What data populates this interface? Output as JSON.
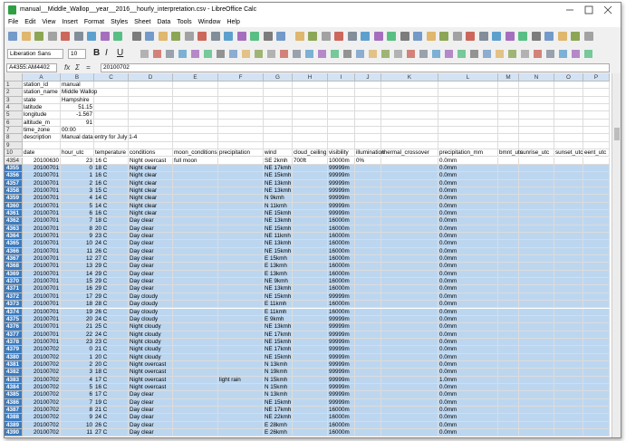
{
  "window": {
    "title": "manual__Middle_Wallop__year__2016__hourly_interpretation.csv - LibreOffice Calc",
    "menu": [
      "File",
      "Edit",
      "View",
      "Insert",
      "Format",
      "Styles",
      "Sheet",
      "Data",
      "Tools",
      "Window",
      "Help"
    ]
  },
  "toolbar": {
    "font_name": "Liberation Sans",
    "font_size": "10",
    "text_style": [
      "B",
      "I",
      "U"
    ]
  },
  "formula_bar": {
    "name_box": "A4355:AM4402",
    "function_icons": [
      "fx",
      "Σ",
      "="
    ],
    "formula": "20100702"
  },
  "sheet": {
    "columns": [
      "A",
      "B",
      "C",
      "D",
      "E",
      "F",
      "G",
      "H",
      "I",
      "J",
      "K",
      "L",
      "M",
      "N",
      "O",
      "P"
    ],
    "rows": [
      [
        1,
        "station_id",
        "manual"
      ],
      [
        2,
        "station_name",
        "Middle Wallop"
      ],
      [
        3,
        "state",
        "Hampshire"
      ],
      [
        4,
        "latitude",
        51.15
      ],
      [
        5,
        "longitude",
        -1.567
      ],
      [
        6,
        "altitude_m",
        91
      ],
      [
        7,
        "time_zone",
        "00:00"
      ],
      [
        8,
        "description",
        "Manual data entry for July 1-4"
      ],
      [
        9
      ],
      [
        10,
        "date",
        "hour_utc",
        "temperature",
        "conditions",
        "moon_conditions",
        "precipitation",
        "wind",
        "cloud_ceiling",
        "visibility",
        "illumination",
        "thermal_crossover",
        "precipitation_mm",
        "bmnt_utc",
        "sunrise_utc",
        "sunset_utc",
        "eent_utc"
      ],
      [
        4354,
        20100630,
        23,
        "16 C",
        "Night overcast",
        "full moon",
        null,
        "SE 2kmh",
        "700ft",
        "10000m",
        "0%",
        null,
        "0.0mm"
      ],
      [
        4355,
        20100701,
        0,
        "18 C",
        "Night clear",
        null,
        null,
        "NE 17kmh",
        null,
        "99999m",
        null,
        null,
        "0.0mm"
      ],
      [
        4356,
        20100701,
        1,
        "16 C",
        "Night clear",
        null,
        null,
        "NE 15kmh",
        null,
        "99999m",
        null,
        null,
        "0.0mm"
      ],
      [
        4357,
        20100701,
        2,
        "16 C",
        "Night clear",
        null,
        null,
        "NE 13kmh",
        null,
        "99999m",
        null,
        null,
        "0.0mm"
      ],
      [
        4358,
        20100701,
        3,
        "15 C",
        "Night clear",
        null,
        null,
        "NE 13kmh",
        null,
        "99999m",
        null,
        null,
        "0.0mm"
      ],
      [
        4359,
        20100701,
        4,
        "14 C",
        "Night clear",
        null,
        null,
        "N 9kmh",
        null,
        "99999m",
        null,
        null,
        "0.0mm"
      ],
      [
        4360,
        20100701,
        5,
        "14 C",
        "Night clear",
        null,
        null,
        "N 11kmh",
        null,
        "99999m",
        null,
        null,
        "0.0mm"
      ],
      [
        4361,
        20100701,
        6,
        "16 C",
        "Night clear",
        null,
        null,
        "NE 15kmh",
        null,
        "99999m",
        null,
        null,
        "0.0mm"
      ],
      [
        4362,
        20100701,
        7,
        "18 C",
        "Day clear",
        null,
        null,
        "NE 13kmh",
        null,
        "16000m",
        null,
        null,
        "0.0mm"
      ],
      [
        4363,
        20100701,
        8,
        "20 C",
        "Day clear",
        null,
        null,
        "NE 15kmh",
        null,
        "16000m",
        null,
        null,
        "0.0mm"
      ],
      [
        4364,
        20100701,
        9,
        "23 C",
        "Day clear",
        null,
        null,
        "NE 11kmh",
        null,
        "16000m",
        null,
        null,
        "0.0mm"
      ],
      [
        4365,
        20100701,
        10,
        "24 C",
        "Day clear",
        null,
        null,
        "NE 13kmh",
        null,
        "16000m",
        null,
        null,
        "0.0mm"
      ],
      [
        4366,
        20100701,
        11,
        "26 C",
        "Day clear",
        null,
        null,
        "NE 15kmh",
        null,
        "16000m",
        null,
        null,
        "0.0mm"
      ],
      [
        4367,
        20100701,
        12,
        "27 C",
        "Day clear",
        null,
        null,
        "E 15kmh",
        null,
        "16000m",
        null,
        null,
        "0.0mm"
      ],
      [
        4368,
        20100701,
        13,
        "29 C",
        "Day clear",
        null,
        null,
        "E 13kmh",
        null,
        "16000m",
        null,
        null,
        "0.0mm"
      ],
      [
        4369,
        20100701,
        14,
        "29 C",
        "Day clear",
        null,
        null,
        "E 13kmh",
        null,
        "16000m",
        null,
        null,
        "0.0mm"
      ],
      [
        4370,
        20100701,
        15,
        "29 C",
        "Day clear",
        null,
        null,
        "NE 9kmh",
        null,
        "16000m",
        null,
        null,
        "0.0mm"
      ],
      [
        4371,
        20100701,
        16,
        "29 C",
        "Day clear",
        null,
        null,
        "NE 13kmh",
        null,
        "16000m",
        null,
        null,
        "0.0mm"
      ],
      [
        4372,
        20100701,
        17,
        "29 C",
        "Day cloudy",
        null,
        null,
        "NE 15kmh",
        null,
        "99999m",
        null,
        null,
        "0.0mm"
      ],
      [
        4373,
        20100701,
        18,
        "28 C",
        "Day cloudy",
        null,
        null,
        "E 11kmh",
        null,
        "16000m",
        null,
        null,
        "0.0mm"
      ],
      [
        4374,
        20100701,
        19,
        "26 C",
        "Day cloudy",
        null,
        null,
        "E 11kmh",
        null,
        "16000m",
        null,
        null,
        "0.0mm"
      ],
      [
        4375,
        20100701,
        20,
        "24 C",
        "Day cloudy",
        null,
        null,
        "E 9kmh",
        null,
        "99999m",
        null,
        null,
        "0.0mm"
      ],
      [
        4376,
        20100701,
        21,
        "25 C",
        "Night cloudy",
        null,
        null,
        "NE 13kmh",
        null,
        "99999m",
        null,
        null,
        "0.0mm"
      ],
      [
        4377,
        20100701,
        22,
        "24 C",
        "Night cloudy",
        null,
        null,
        "NE 17kmh",
        null,
        "99999m",
        null,
        null,
        "0.0mm"
      ],
      [
        4378,
        20100701,
        23,
        "23 C",
        "Night cloudy",
        null,
        null,
        "NE 15kmh",
        null,
        "99999m",
        null,
        null,
        "0.0mm"
      ],
      [
        4379,
        20100702,
        0,
        "21 C",
        "Night cloudy",
        null,
        null,
        "NE 17kmh",
        null,
        "99999m",
        null,
        null,
        "0.0mm"
      ],
      [
        4380,
        20100702,
        1,
        "20 C",
        "Night cloudy",
        null,
        null,
        "NE 15kmh",
        null,
        "99999m",
        null,
        null,
        "0.0mm"
      ],
      [
        4381,
        20100702,
        2,
        "20 C",
        "Night overcast",
        null,
        null,
        "N 13kmh",
        null,
        "99999m",
        null,
        null,
        "0.0mm"
      ],
      [
        4382,
        20100702,
        3,
        "18 C",
        "Night overcast",
        null,
        null,
        "N 19kmh",
        null,
        "99999m",
        null,
        null,
        "0.0mm"
      ],
      [
        4383,
        20100702,
        4,
        "17 C",
        "Night overcast",
        null,
        "light rain",
        "N 15kmh",
        null,
        "99999m",
        null,
        null,
        "1.0mm"
      ],
      [
        4384,
        20100702,
        5,
        "16 C",
        "Night overcast",
        null,
        null,
        "N 15kmh",
        null,
        "99999m",
        null,
        null,
        "0.0mm"
      ],
      [
        4385,
        20100702,
        6,
        "17 C",
        "Day clear",
        null,
        null,
        "N 13kmh",
        null,
        "99999m",
        null,
        null,
        "0.0mm"
      ],
      [
        4386,
        20100702,
        7,
        "19 C",
        "Day clear",
        null,
        null,
        "NE 15kmh",
        null,
        "99999m",
        null,
        null,
        "0.0mm"
      ],
      [
        4387,
        20100702,
        8,
        "21 C",
        "Day clear",
        null,
        null,
        "NE 17kmh",
        null,
        "16000m",
        null,
        null,
        "0.0mm"
      ],
      [
        4388,
        20100702,
        9,
        "24 C",
        "Day clear",
        null,
        null,
        "NE 22kmh",
        null,
        "16000m",
        null,
        null,
        "0.0mm"
      ],
      [
        4389,
        20100702,
        10,
        "26 C",
        "Day clear",
        null,
        null,
        "E 28kmh",
        null,
        "16000m",
        null,
        null,
        "0.0mm"
      ],
      [
        4390,
        20100702,
        11,
        "27 C",
        "Day clear",
        null,
        null,
        "E 26kmh",
        null,
        "16000m",
        null,
        null,
        "0.0mm"
      ]
    ]
  }
}
